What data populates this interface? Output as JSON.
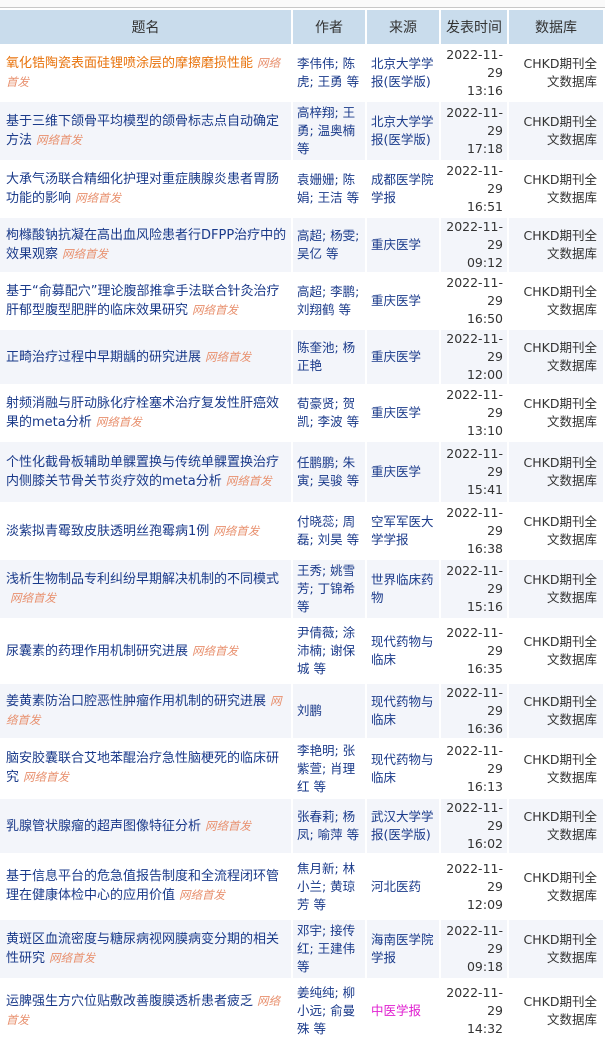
{
  "header": {
    "title": "题名",
    "author": "作者",
    "source": "来源",
    "time": "发表时间",
    "db": "数据库"
  },
  "tag": "网络首发",
  "colors": {
    "header_bg": "#c9dcec",
    "link": "#1a3a8a",
    "visited_title": "#e8730c",
    "tag": "#e8906e",
    "highlight_source": "#e020d0"
  },
  "rows": [
    {
      "title": "氧化锆陶瓷表面硅锂喷涂层的摩擦磨损性能",
      "author": "李伟伟; 陈虎; 王勇 等",
      "source": "北京大学学报(医学版)",
      "date": "2022-11-29",
      "clock": "13:16",
      "db": "CHKD期刊全文数据库"
    },
    {
      "title": "基于三维下颌骨平均模型的颌骨标志点自动确定方法",
      "author": "高梓翔; 王勇; 温奥楠 等",
      "source": "北京大学学报(医学版)",
      "date": "2022-11-29",
      "clock": "17:18",
      "db": "CHKD期刊全文数据库"
    },
    {
      "title": "大承气汤联合精细化护理对重症胰腺炎患者胃肠功能的影响",
      "author": "袁姗姗; 陈娟; 王洁 等",
      "source": "成都医学院学报",
      "date": "2022-11-29",
      "clock": "16:51",
      "db": "CHKD期刊全文数据库"
    },
    {
      "title": "枸橼酸钠抗凝在高出血风险患者行DFPP治疗中的效果观察",
      "author": "高超; 杨雯; 吴亿 等",
      "source": "重庆医学",
      "date": "2022-11-29",
      "clock": "09:12",
      "db": "CHKD期刊全文数据库"
    },
    {
      "title": "基于“俞募配穴”理论腹部推拿手法联合针灸治疗肝郁型腹型肥胖的临床效果研究",
      "author": "高超; 李鹏; 刘翔鹤 等",
      "source": "重庆医学",
      "date": "2022-11-29",
      "clock": "16:50",
      "db": "CHKD期刊全文数据库"
    },
    {
      "title": "正畸治疗过程中早期龋的研究进展",
      "author": "陈奎池; 杨正艳",
      "source": "重庆医学",
      "date": "2022-11-29",
      "clock": "12:00",
      "db": "CHKD期刊全文数据库"
    },
    {
      "title": "射频消融与肝动脉化疗栓塞术治疗复发性肝癌效果的meta分析",
      "author": "荀豪贤; 贺凯; 李波 等",
      "source": "重庆医学",
      "date": "2022-11-29",
      "clock": "13:10",
      "db": "CHKD期刊全文数据库"
    },
    {
      "title": "个性化截骨板辅助单髁置换与传统单髁置换治疗内侧膝关节骨关节炎疗效的meta分析",
      "author": "任鹏鹏; 朱寅; 吴骏 等",
      "source": "重庆医学",
      "date": "2022-11-29",
      "clock": "15:41",
      "db": "CHKD期刊全文数据库"
    },
    {
      "title": "淡紫拟青霉致皮肤透明丝孢霉病1例",
      "author": "付晓蕊; 周磊; 刘昊 等",
      "source": "空军军医大学学报",
      "date": "2022-11-29",
      "clock": "16:38",
      "db": "CHKD期刊全文数据库"
    },
    {
      "title": "浅析生物制品专利纠纷早期解决机制的不同模式",
      "author": "王秀; 姚雪芳; 丁锦希 等",
      "source": "世界临床药物",
      "date": "2022-11-29",
      "clock": "15:16",
      "db": "CHKD期刊全文数据库"
    },
    {
      "title": "尿囊素的药理作用机制研究进展",
      "author": "尹倩薇; 涂沛楠; 谢保城 等",
      "source": "现代药物与临床",
      "date": "2022-11-29",
      "clock": "16:35",
      "db": "CHKD期刊全文数据库"
    },
    {
      "title": "姜黄素防治口腔恶性肿瘤作用机制的研究进展",
      "author": "刘鹏",
      "source": "现代药物与临床",
      "date": "2022-11-29",
      "clock": "16:36",
      "db": "CHKD期刊全文数据库"
    },
    {
      "title": "脑安胶囊联合艾地苯醌治疗急性脑梗死的临床研究",
      "author": "李艳明; 张紫萱; 肖理红 等",
      "source": "现代药物与临床",
      "date": "2022-11-29",
      "clock": "16:13",
      "db": "CHKD期刊全文数据库"
    },
    {
      "title": "乳腺管状腺瘤的超声图像特征分析",
      "author": "张春莉; 杨凤; 喻萍 等",
      "source": "武汉大学学报(医学版)",
      "date": "2022-11-29",
      "clock": "16:02",
      "db": "CHKD期刊全文数据库"
    },
    {
      "title": "基于信息平台的危急值报告制度和全流程闭环管理在健康体检中心的应用价值",
      "author": "焦月新; 林小兰; 黄琼芳 等",
      "source": "河北医药",
      "date": "2022-11-29",
      "clock": "12:09",
      "db": "CHKD期刊全文数据库"
    },
    {
      "title": "黄斑区血流密度与糖尿病视网膜病变分期的相关性研究",
      "author": "邓宇; 接传红; 王建伟 等",
      "source": "海南医学院学报",
      "date": "2022-11-29",
      "clock": "09:18",
      "db": "CHKD期刊全文数据库"
    },
    {
      "title": "运脾强生方穴位贴敷改善腹膜透析患者疲乏",
      "author": "姜纯纯; 柳小远; 俞曼殊 等",
      "source": "中医学报",
      "date": "2022-11-29",
      "clock": "14:32",
      "db": "CHKD期刊全文数据库",
      "source_highlight": true
    }
  ]
}
